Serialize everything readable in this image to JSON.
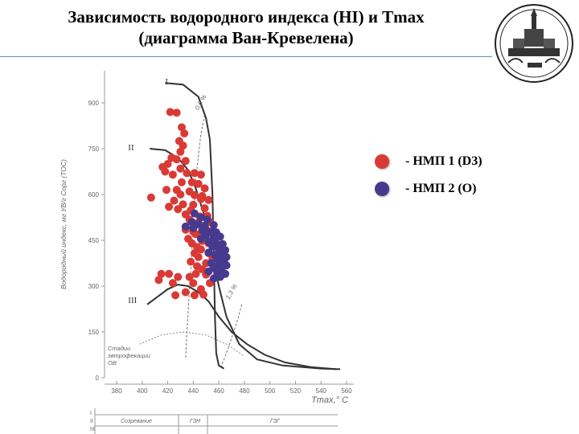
{
  "title": {
    "line1": "Зависимость водородного индекса (HI) и Tmax",
    "line2": "(диаграмма Ван-Кревелена)"
  },
  "legend": [
    {
      "label": "- НМП 1 (D3)",
      "color": "#d93a35"
    },
    {
      "label": "- НМП 2 (О)",
      "color": "#463a8e"
    }
  ],
  "chart_data": {
    "type": "scatter",
    "xlabel": "Tmax,° C",
    "ylabel": "Водородный индекс, мг УВ/г Сорг (ТОС)",
    "xlim": [
      380,
      560
    ],
    "ylim": [
      0,
      1000
    ],
    "x_ticks": [
      380,
      400,
      420,
      440,
      460,
      480,
      500,
      520,
      540,
      560
    ],
    "y_ticks": [
      0,
      150,
      300,
      450,
      600,
      750,
      900
    ],
    "type_labels": [
      {
        "text": "I",
        "x": 418,
        "y": 960
      },
      {
        "text": "II",
        "x": 389,
        "y": 745
      },
      {
        "text": "III",
        "x": 389,
        "y": 245
      }
    ],
    "ro_labels": [
      {
        "text": "0,6 %",
        "x": 444,
        "y": 875
      },
      {
        "text": "1,3 %",
        "x": 468,
        "y": 255
      }
    ],
    "zone_label": "Стадии\nэвтрофекации\nОВ",
    "type_curves": [
      {
        "name": "I",
        "points": [
          [
            418,
            965
          ],
          [
            432,
            960
          ],
          [
            444,
            920
          ],
          [
            450,
            850
          ],
          [
            453,
            780
          ],
          [
            455,
            600
          ],
          [
            456,
            400
          ],
          [
            457,
            200
          ],
          [
            458,
            80
          ],
          [
            460,
            40
          ],
          [
            464,
            30
          ]
        ]
      },
      {
        "name": "II",
        "points": [
          [
            406,
            750
          ],
          [
            418,
            745
          ],
          [
            428,
            720
          ],
          [
            436,
            680
          ],
          [
            442,
            620
          ],
          [
            448,
            540
          ],
          [
            455,
            400
          ],
          [
            460,
            300
          ],
          [
            466,
            200
          ],
          [
            476,
            110
          ],
          [
            490,
            60
          ],
          [
            510,
            40
          ],
          [
            540,
            30
          ],
          [
            555,
            28
          ]
        ]
      },
      {
        "name": "III",
        "points": [
          [
            404,
            240
          ],
          [
            412,
            265
          ],
          [
            420,
            290
          ],
          [
            428,
            305
          ],
          [
            436,
            300
          ],
          [
            444,
            280
          ],
          [
            452,
            250
          ],
          [
            460,
            200
          ],
          [
            470,
            150
          ],
          [
            482,
            110
          ],
          [
            496,
            75
          ],
          [
            512,
            50
          ],
          [
            532,
            35
          ],
          [
            552,
            28
          ]
        ]
      }
    ],
    "ro_lines": [
      {
        "name": "0,6 %",
        "points": [
          [
            449,
            860
          ],
          [
            446,
            800
          ],
          [
            442,
            650
          ],
          [
            440,
            500
          ],
          [
            438,
            350
          ],
          [
            436,
            220
          ],
          [
            435,
            150
          ],
          [
            434,
            60
          ]
        ]
      },
      {
        "name": "1,3 %",
        "points": [
          [
            478,
            240
          ],
          [
            474,
            180
          ],
          [
            470,
            130
          ],
          [
            465,
            70
          ],
          [
            461,
            30
          ]
        ]
      }
    ],
    "zone_curve": [
      [
        398,
        110
      ],
      [
        415,
        140
      ],
      [
        432,
        150
      ],
      [
        450,
        140
      ],
      [
        466,
        110
      ],
      [
        480,
        70
      ]
    ],
    "stage_rows": [
      "I",
      "II",
      "III"
    ],
    "stage_labels": [
      "Созревание",
      "ГЗН",
      "ГЗГ"
    ],
    "series": [
      {
        "name": "НМП 1 (D3)",
        "color": "#d93a35",
        "points": [
          [
            422,
            870
          ],
          [
            427,
            868
          ],
          [
            431,
            820
          ],
          [
            433,
            800
          ],
          [
            429,
            775
          ],
          [
            432,
            760
          ],
          [
            430,
            740
          ],
          [
            423,
            720
          ],
          [
            427,
            715
          ],
          [
            434,
            710
          ],
          [
            420,
            700
          ],
          [
            416,
            690
          ],
          [
            418,
            675
          ],
          [
            424,
            665
          ],
          [
            430,
            685
          ],
          [
            435,
            670
          ],
          [
            441,
            670
          ],
          [
            446,
            665
          ],
          [
            431,
            640
          ],
          [
            439,
            640
          ],
          [
            444,
            635
          ],
          [
            449,
            620
          ],
          [
            419,
            615
          ],
          [
            427,
            615
          ],
          [
            437,
            610
          ],
          [
            430,
            600
          ],
          [
            441,
            598
          ],
          [
            447,
            595
          ],
          [
            407,
            590
          ],
          [
            425,
            580
          ],
          [
            432,
            568
          ],
          [
            440,
            566
          ],
          [
            446,
            585
          ],
          [
            452,
            582
          ],
          [
            421,
            560
          ],
          [
            428,
            552
          ],
          [
            449,
            555
          ],
          [
            438,
            548
          ],
          [
            434,
            535
          ],
          [
            445,
            528
          ],
          [
            451,
            530
          ],
          [
            437,
            518
          ],
          [
            444,
            508
          ],
          [
            453,
            510
          ],
          [
            441,
            498
          ],
          [
            447,
            492
          ],
          [
            434,
            485
          ],
          [
            450,
            486
          ],
          [
            440,
            478
          ],
          [
            442,
            470
          ],
          [
            448,
            466
          ],
          [
            436,
            455
          ],
          [
            447,
            448
          ],
          [
            439,
            440
          ],
          [
            452,
            440
          ],
          [
            443,
            428
          ],
          [
            456,
            430
          ],
          [
            446,
            420
          ],
          [
            441,
            408
          ],
          [
            452,
            408
          ],
          [
            444,
            395
          ],
          [
            455,
            390
          ],
          [
            438,
            380
          ],
          [
            450,
            375
          ],
          [
            443,
            365
          ],
          [
            447,
            355
          ],
          [
            456,
            362
          ],
          [
            421,
            340
          ],
          [
            442,
            340
          ],
          [
            450,
            338
          ],
          [
            437,
            330
          ],
          [
            440,
            310
          ],
          [
            453,
            310
          ],
          [
            446,
            290
          ],
          [
            434,
            280
          ],
          [
            448,
            272
          ],
          [
            426,
            270
          ],
          [
            441,
            270
          ],
          [
            415,
            340
          ],
          [
            413,
            320
          ],
          [
            428,
            330
          ],
          [
            424,
            310
          ]
        ]
      },
      {
        "name": "НМП 2 (О)",
        "color": "#463a8e",
        "points": [
          [
            441,
            538
          ],
          [
            446,
            525
          ],
          [
            451,
            518
          ],
          [
            439,
            510
          ],
          [
            444,
            503
          ],
          [
            449,
            498
          ],
          [
            456,
            500
          ],
          [
            434,
            495
          ],
          [
            440,
            490
          ],
          [
            447,
            482
          ],
          [
            453,
            478
          ],
          [
            458,
            476
          ],
          [
            450,
            468
          ],
          [
            456,
            460
          ],
          [
            461,
            462
          ],
          [
            446,
            455
          ],
          [
            452,
            445
          ],
          [
            458,
            440
          ],
          [
            463,
            438
          ],
          [
            455,
            430
          ],
          [
            460,
            420
          ],
          [
            465,
            418
          ],
          [
            452,
            410
          ],
          [
            457,
            402
          ],
          [
            462,
            400
          ],
          [
            466,
            395
          ],
          [
            459,
            388
          ],
          [
            464,
            380
          ],
          [
            454,
            375
          ],
          [
            460,
            370
          ],
          [
            466,
            368
          ],
          [
            456,
            360
          ],
          [
            462,
            352
          ],
          [
            452,
            348
          ],
          [
            459,
            342
          ],
          [
            465,
            340
          ],
          [
            461,
            330
          ],
          [
            456,
            325
          ]
        ]
      }
    ]
  }
}
